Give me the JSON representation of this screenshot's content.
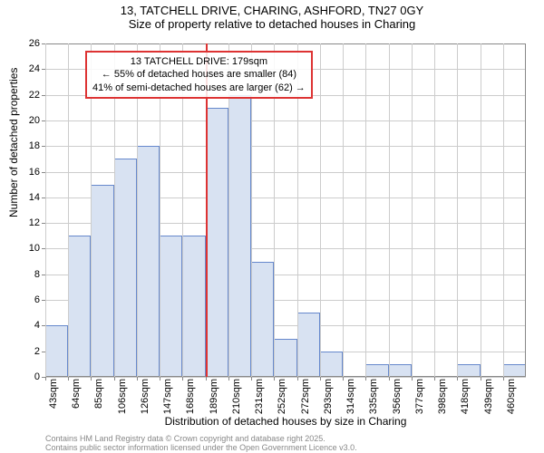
{
  "title": {
    "line1": "13, TATCHELL DRIVE, CHARING, ASHFORD, TN27 0GY",
    "line2": "Size of property relative to detached houses in Charing"
  },
  "chart": {
    "type": "histogram",
    "ylabel": "Number of detached properties",
    "xlabel": "Distribution of detached houses by size in Charing",
    "ylim": [
      0,
      26
    ],
    "ytick_step": 2,
    "yticks": [
      0,
      2,
      4,
      6,
      8,
      10,
      12,
      14,
      16,
      18,
      20,
      22,
      24,
      26
    ],
    "xticks": [
      "43sqm",
      "64sqm",
      "85sqm",
      "106sqm",
      "126sqm",
      "147sqm",
      "168sqm",
      "189sqm",
      "210sqm",
      "231sqm",
      "252sqm",
      "272sqm",
      "293sqm",
      "314sqm",
      "335sqm",
      "356sqm",
      "377sqm",
      "398sqm",
      "418sqm",
      "439sqm",
      "460sqm"
    ],
    "values": [
      4,
      11,
      15,
      17,
      18,
      11,
      11,
      21,
      22,
      9,
      3,
      5,
      2,
      0,
      1,
      1,
      0,
      0,
      1,
      0,
      1
    ],
    "bar_fill": "#d8e2f2",
    "bar_stroke": "#6688cc",
    "grid_color": "#cccccc",
    "background_color": "#ffffff",
    "marker": {
      "position_index": 7,
      "color": "#dd3333"
    },
    "annotation": {
      "line1": "13 TATCHELL DRIVE: 179sqm",
      "line2": "← 55% of detached houses are smaller (84)",
      "line3": "41% of semi-detached houses are larger (62) →",
      "border_color": "#dd3333"
    }
  },
  "footer": {
    "line1": "Contains HM Land Registry data © Crown copyright and database right 2025.",
    "line2": "Contains public sector information licensed under the Open Government Licence v3.0."
  }
}
